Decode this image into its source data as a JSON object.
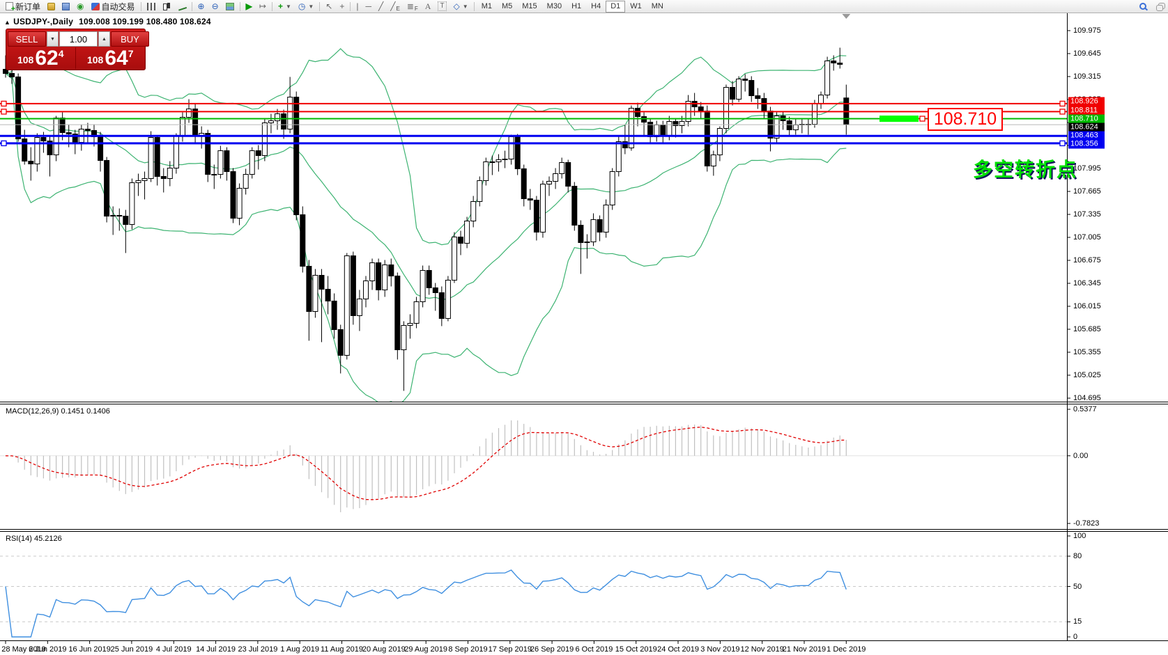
{
  "toolbar": {
    "new_order_label": "新订单",
    "auto_trading_label": "自动交易",
    "timeframes": [
      "M1",
      "M5",
      "M15",
      "M30",
      "H1",
      "H4",
      "D1",
      "W1",
      "MN"
    ],
    "active_timeframe": "D1"
  },
  "chart": {
    "collapse_marker": "▲",
    "title": "USDJPY-,Daily",
    "ohlc_text": "109.008 109.199 108.480 108.624",
    "callout_text": "108.710",
    "annotation": "多空转折点",
    "price_labels": [
      {
        "text": "108.926",
        "color": "#f00000"
      },
      {
        "text": "108.811",
        "color": "#f00000"
      },
      {
        "text": "108.710",
        "color": "#00ba00"
      },
      {
        "text": "108.624",
        "color": "#000000"
      },
      {
        "text": "108.463",
        "color": "#0000f0"
      },
      {
        "text": "108.356",
        "color": "#0000f0"
      }
    ]
  },
  "trade": {
    "sell_label": "SELL",
    "buy_label": "BUY",
    "volume": "1.00",
    "sell_price_prefix": "108",
    "sell_price_main": "62",
    "sell_price_pip": "4",
    "buy_price_prefix": "108",
    "buy_price_main": "64",
    "buy_price_pip": "7"
  },
  "macd": {
    "label": "MACD(12,26,9) 0.1451 0.1406",
    "axis_labels": [
      "0.5377",
      "0.00",
      "-0.7823"
    ]
  },
  "rsi": {
    "label": "RSI(14) 45.2126",
    "axis_labels": [
      "100",
      "80",
      "50",
      "15",
      "0"
    ]
  },
  "chart_data": {
    "type": "candlestick",
    "symbol": "USDJPY",
    "period": "Daily",
    "title": "USDJPY-,Daily 109.008 109.199 108.480 108.624",
    "x_tick_labels": [
      "28 May 2019",
      "6 Jun 2019",
      "16 Jun 2019",
      "25 Jun 2019",
      "4 Jul 2019",
      "14 Jul 2019",
      "23 Jul 2019",
      "1 Aug 2019",
      "11 Aug 2019",
      "20 Aug 2019",
      "29 Aug 2019",
      "8 Sep 2019",
      "17 Sep 2019",
      "26 Sep 2019",
      "6 Oct 2019",
      "15 Oct 2019",
      "24 Oct 2019",
      "3 Nov 2019",
      "12 Nov 2019",
      "21 Nov 2019",
      "1 Dec 2019"
    ],
    "y_axis": {
      "top_tick": 109.975,
      "tick_step": 0.33,
      "tick_count": 17,
      "bottom_tick": 104.695
    },
    "current_price": 108.624,
    "horizontal_lines": [
      {
        "price": 108.926,
        "color": "#f00000",
        "width": 2,
        "anchors": "ends"
      },
      {
        "price": 108.811,
        "color": "#f00000",
        "width": 2,
        "anchors": "ends"
      },
      {
        "price": 108.71,
        "color": "#00ba00",
        "width": 2,
        "anchors": "callout",
        "highlight_x": [
          1262,
          1318
        ]
      },
      {
        "price": 108.463,
        "color": "#0000f0",
        "width": 3,
        "anchors": "none"
      },
      {
        "price": 108.356,
        "color": "#0000f0",
        "width": 3,
        "anchors": "ends"
      }
    ],
    "indicators": {
      "bollinger": {
        "period": 20,
        "deviation": 2,
        "color": "#3cb371"
      },
      "macd": {
        "fast": 12,
        "slow": 26,
        "signal": 9,
        "value": 0.1451,
        "signal_value": 0.1406,
        "axis_ticks": [
          0.5377,
          0,
          -0.7823
        ],
        "hist_color": "#c0c0c0",
        "signal_color": "#e00000"
      },
      "rsi": {
        "period": 14,
        "value": 45.2126,
        "levels": [
          80,
          50,
          15
        ],
        "axis_ticks": [
          100,
          80,
          50,
          15,
          0
        ],
        "color": "#3f8fe0"
      }
    },
    "candles_ohlc": [
      [
        109.42,
        109.62,
        109.3,
        109.36
      ],
      [
        109.36,
        109.47,
        109.21,
        109.31
      ],
      [
        109.31,
        109.36,
        108.38,
        108.42
      ],
      [
        108.42,
        108.55,
        108.05,
        108.1
      ],
      [
        108.1,
        108.3,
        107.82,
        108.06
      ],
      [
        108.06,
        108.5,
        107.95,
        108.44
      ],
      [
        108.44,
        108.52,
        108.22,
        108.39
      ],
      [
        108.39,
        108.45,
        107.88,
        108.19
      ],
      [
        108.19,
        108.75,
        108.1,
        108.72
      ],
      [
        108.72,
        108.8,
        108.4,
        108.51
      ],
      [
        108.51,
        108.62,
        108.3,
        108.49
      ],
      [
        108.49,
        108.55,
        108.2,
        108.37
      ],
      [
        108.37,
        108.62,
        108.25,
        108.56
      ],
      [
        108.56,
        108.65,
        108.35,
        108.54
      ],
      [
        108.54,
        108.63,
        108.31,
        108.45
      ],
      [
        108.45,
        108.52,
        107.95,
        108.11
      ],
      [
        108.11,
        108.16,
        107.22,
        107.31
      ],
      [
        107.31,
        107.45,
        107.04,
        107.32
      ],
      [
        107.32,
        107.42,
        107.1,
        107.31
      ],
      [
        107.31,
        107.4,
        106.78,
        107.19
      ],
      [
        107.19,
        107.85,
        107.12,
        107.79
      ],
      [
        107.79,
        107.92,
        107.6,
        107.82
      ],
      [
        107.82,
        107.95,
        107.55,
        107.85
      ],
      [
        107.85,
        108.53,
        107.8,
        108.44
      ],
      [
        108.44,
        108.47,
        107.75,
        107.88
      ],
      [
        107.88,
        108.0,
        107.65,
        107.85
      ],
      [
        107.85,
        108.1,
        107.74,
        108.0
      ],
      [
        108.0,
        108.5,
        107.92,
        108.47
      ],
      [
        108.47,
        108.8,
        108.38,
        108.73
      ],
      [
        108.73,
        108.99,
        108.65,
        108.85
      ],
      [
        108.85,
        108.92,
        108.35,
        108.46
      ],
      [
        108.46,
        108.6,
        108.28,
        108.5
      ],
      [
        108.5,
        108.55,
        107.8,
        107.91
      ],
      [
        107.91,
        108.05,
        107.7,
        107.91
      ],
      [
        107.91,
        108.32,
        107.85,
        108.25
      ],
      [
        108.25,
        108.3,
        107.82,
        107.95
      ],
      [
        107.95,
        108.0,
        107.21,
        107.28
      ],
      [
        107.28,
        107.78,
        107.18,
        107.71
      ],
      [
        107.71,
        107.99,
        107.62,
        107.91
      ],
      [
        107.91,
        108.3,
        107.85,
        108.25
      ],
      [
        108.25,
        108.33,
        107.98,
        108.18
      ],
      [
        108.18,
        108.7,
        108.1,
        108.65
      ],
      [
        108.65,
        108.78,
        108.5,
        108.68
      ],
      [
        108.68,
        108.85,
        108.55,
        108.78
      ],
      [
        108.78,
        108.84,
        108.42,
        108.56
      ],
      [
        108.56,
        109.31,
        108.5,
        109.02
      ],
      [
        109.02,
        109.1,
        107.25,
        107.33
      ],
      [
        107.33,
        107.45,
        106.5,
        106.59
      ],
      [
        106.59,
        106.68,
        105.52,
        105.94
      ],
      [
        105.94,
        106.55,
        105.85,
        106.46
      ],
      [
        106.46,
        106.55,
        105.5,
        106.26
      ],
      [
        106.26,
        106.45,
        105.9,
        106.09
      ],
      [
        106.09,
        106.2,
        105.55,
        105.68
      ],
      [
        105.68,
        105.75,
        105.05,
        105.31
      ],
      [
        105.31,
        106.78,
        105.25,
        106.74
      ],
      [
        106.74,
        106.8,
        105.75,
        105.88
      ],
      [
        105.88,
        106.25,
        105.66,
        106.12
      ],
      [
        106.12,
        106.45,
        106.0,
        106.38
      ],
      [
        106.38,
        106.7,
        106.25,
        106.64
      ],
      [
        106.64,
        106.7,
        106.1,
        106.25
      ],
      [
        106.25,
        106.68,
        106.15,
        106.61
      ],
      [
        106.61,
        106.7,
        106.3,
        106.45
      ],
      [
        106.45,
        106.5,
        105.25,
        105.39
      ],
      [
        105.39,
        105.8,
        104.8,
        105.74
      ],
      [
        105.74,
        105.9,
        105.55,
        105.77
      ],
      [
        105.77,
        106.15,
        105.7,
        106.08
      ],
      [
        106.08,
        106.6,
        106.0,
        106.53
      ],
      [
        106.53,
        106.6,
        106.18,
        106.28
      ],
      [
        106.28,
        106.35,
        105.95,
        106.21
      ],
      [
        106.21,
        106.3,
        105.73,
        105.84
      ],
      [
        105.84,
        106.45,
        105.8,
        106.39
      ],
      [
        106.39,
        107.08,
        106.35,
        107.01
      ],
      [
        107.01,
        107.1,
        106.75,
        106.92
      ],
      [
        106.92,
        107.3,
        106.85,
        107.24
      ],
      [
        107.24,
        107.6,
        107.15,
        107.52
      ],
      [
        107.52,
        107.88,
        107.45,
        107.82
      ],
      [
        107.82,
        108.15,
        107.75,
        108.09
      ],
      [
        108.09,
        108.18,
        107.9,
        108.09
      ],
      [
        108.09,
        108.2,
        107.95,
        108.12
      ],
      [
        108.12,
        108.25,
        108.0,
        108.13
      ],
      [
        108.13,
        108.48,
        108.05,
        108.45
      ],
      [
        108.45,
        108.49,
        107.9,
        107.99
      ],
      [
        107.99,
        108.05,
        107.45,
        107.56
      ],
      [
        107.56,
        107.7,
        107.4,
        107.54
      ],
      [
        107.54,
        107.6,
        106.96,
        107.08
      ],
      [
        107.08,
        107.82,
        107.0,
        107.77
      ],
      [
        107.77,
        107.88,
        107.6,
        107.81
      ],
      [
        107.81,
        108.0,
        107.7,
        107.92
      ],
      [
        107.92,
        108.15,
        107.85,
        108.08
      ],
      [
        108.08,
        108.12,
        107.65,
        107.74
      ],
      [
        107.74,
        107.8,
        107.1,
        107.18
      ],
      [
        107.18,
        107.25,
        106.48,
        106.93
      ],
      [
        106.93,
        107.05,
        106.7,
        106.94
      ],
      [
        106.94,
        107.35,
        106.88,
        107.26
      ],
      [
        107.26,
        107.32,
        106.95,
        107.08
      ],
      [
        107.08,
        107.55,
        107.0,
        107.47
      ],
      [
        107.47,
        108.0,
        107.4,
        107.95
      ],
      [
        107.95,
        108.45,
        107.88,
        108.38
      ],
      [
        108.38,
        108.62,
        108.2,
        108.29
      ],
      [
        108.29,
        108.9,
        108.25,
        108.86
      ],
      [
        108.86,
        108.94,
        108.6,
        108.74
      ],
      [
        108.74,
        108.8,
        108.45,
        108.66
      ],
      [
        108.66,
        108.7,
        108.36,
        108.45
      ],
      [
        108.45,
        108.68,
        108.38,
        108.62
      ],
      [
        108.62,
        108.68,
        108.35,
        108.47
      ],
      [
        108.47,
        108.75,
        108.4,
        108.67
      ],
      [
        108.67,
        108.72,
        108.44,
        108.61
      ],
      [
        108.61,
        108.75,
        108.5,
        108.67
      ],
      [
        108.67,
        109.05,
        108.6,
        108.96
      ],
      [
        108.96,
        109.08,
        108.75,
        108.88
      ],
      [
        108.88,
        108.95,
        108.7,
        108.82
      ],
      [
        108.82,
        108.9,
        107.95,
        108.03
      ],
      [
        108.03,
        108.25,
        107.89,
        108.19
      ],
      [
        108.19,
        108.6,
        108.1,
        108.57
      ],
      [
        108.57,
        109.2,
        108.5,
        109.16
      ],
      [
        109.16,
        109.25,
        108.9,
        108.99
      ],
      [
        108.99,
        109.32,
        108.95,
        109.28
      ],
      [
        109.28,
        109.35,
        109.1,
        109.26
      ],
      [
        109.26,
        109.32,
        108.95,
        109.04
      ],
      [
        109.04,
        109.15,
        108.85,
        109.0
      ],
      [
        109.0,
        109.08,
        108.7,
        108.82
      ],
      [
        108.82,
        108.88,
        108.24,
        108.43
      ],
      [
        108.43,
        108.8,
        108.35,
        108.75
      ],
      [
        108.75,
        108.82,
        108.55,
        108.68
      ],
      [
        108.68,
        108.74,
        108.45,
        108.55
      ],
      [
        108.55,
        108.7,
        108.48,
        108.62
      ],
      [
        108.62,
        108.7,
        108.5,
        108.63
      ],
      [
        108.63,
        108.7,
        108.48,
        108.63
      ],
      [
        108.63,
        108.98,
        108.58,
        108.93
      ],
      [
        108.93,
        109.1,
        108.85,
        109.05
      ],
      [
        109.05,
        109.6,
        109.0,
        109.54
      ],
      [
        109.54,
        109.62,
        109.4,
        109.51
      ],
      [
        109.51,
        109.73,
        109.43,
        109.49
      ],
      [
        109.008,
        109.199,
        108.48,
        108.624
      ]
    ]
  }
}
